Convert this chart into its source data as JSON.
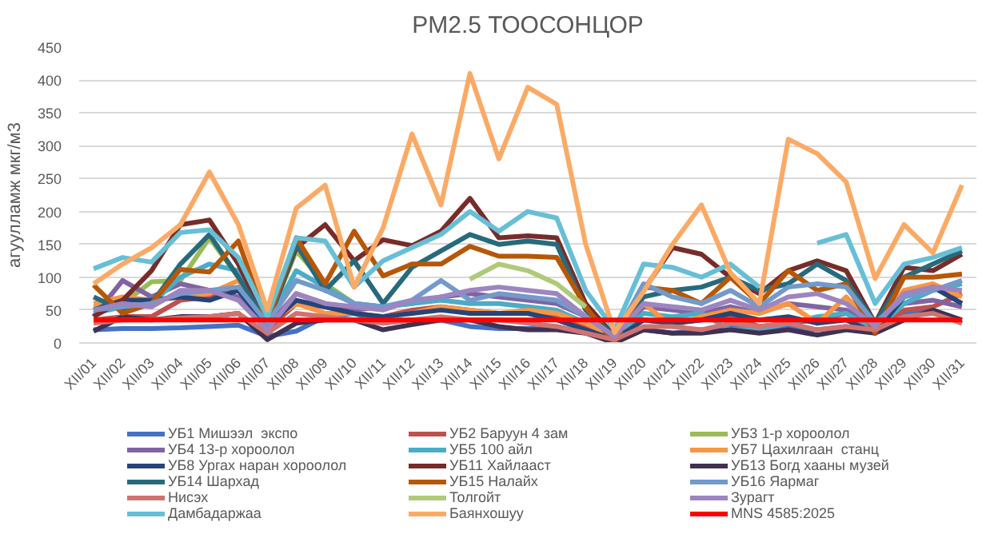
{
  "chart_data": {
    "type": "line",
    "title": "PM2.5 ТООСОНЦОР",
    "ylabel": "агуулламж мкг/м3",
    "categories": [
      "XII/01",
      "XII/02",
      "XII/03",
      "XII/04",
      "XII/05",
      "XII/06",
      "XII/07",
      "XII/08",
      "XII/09",
      "XII/10",
      "XII/11",
      "XII/12",
      "XII/13",
      "XII/14",
      "XII/15",
      "XII/16",
      "XII/17",
      "XII/18",
      "XII/19",
      "XII/20",
      "XII/21",
      "XII/22",
      "XII/23",
      "XII/24",
      "XII/25",
      "XII/26",
      "XII/27",
      "XII/28",
      "XII/29",
      "XII/30",
      "XII/31"
    ],
    "ylim": [
      0,
      450
    ],
    "yticks": [
      0,
      50,
      100,
      150,
      200,
      250,
      300,
      350,
      400,
      450
    ],
    "grid": "y",
    "legend": "bottom",
    "marker": "none",
    "line_style": "solid",
    "series": [
      {
        "name": "УБ1 Мишээл  экспо",
        "color": "#4472c4",
        "values": [
          20,
          22,
          22,
          23,
          25,
          27,
          10,
          18,
          40,
          45,
          30,
          35,
          35,
          25,
          22,
          22,
          25,
          15,
          5,
          20,
          15,
          20,
          25,
          20,
          25,
          20,
          25,
          15,
          45,
          50,
          30
        ]
      },
      {
        "name": "УБ2 Баруун 4 зам",
        "color": "#c0504d",
        "values": [
          35,
          40,
          40,
          65,
          70,
          80,
          20,
          60,
          55,
          45,
          40,
          50,
          55,
          50,
          45,
          45,
          40,
          25,
          10,
          35,
          30,
          35,
          40,
          25,
          30,
          35,
          45,
          20,
          50,
          55,
          75
        ]
      },
      {
        "name": "УБ3 1-р хороолол",
        "color": "#9bbb59",
        "values": [
          55,
          60,
          93,
          95,
          160,
          100,
          30,
          140,
          90,
          60,
          55,
          null,
          null,
          null,
          null,
          null,
          null,
          null,
          null,
          null,
          55,
          50,
          50,
          null,
          null,
          null,
          null,
          null,
          null,
          null,
          null
        ]
      },
      {
        "name": "УБ4 13-р хороолол",
        "color": "#8064a2",
        "values": [
          40,
          95,
          70,
          90,
          80,
          70,
          25,
          75,
          60,
          50,
          55,
          60,
          70,
          75,
          70,
          65,
          60,
          40,
          10,
          55,
          50,
          45,
          55,
          45,
          60,
          55,
          50,
          25,
          60,
          65,
          55
        ]
      },
      {
        "name": "УБ5 100 айл",
        "color": "#4bacc6",
        "values": [
          45,
          55,
          60,
          100,
          120,
          110,
          30,
          110,
          85,
          60,
          55,
          60,
          65,
          60,
          60,
          55,
          50,
          30,
          10,
          45,
          40,
          45,
          20,
          20,
          30,
          40,
          45,
          20,
          60,
          80,
          90
        ]
      },
      {
        "name": "УБ7 Цахилгаан  станц",
        "color": "#f79646",
        "values": [
          60,
          70,
          65,
          70,
          75,
          95,
          30,
          60,
          45,
          45,
          40,
          45,
          55,
          50,
          45,
          50,
          45,
          30,
          10,
          60,
          25,
          40,
          50,
          45,
          60,
          30,
          70,
          25,
          80,
          90,
          70
        ]
      },
      {
        "name": "УБ8 Ургах наран хороолол",
        "color": "#264478",
        "values": [
          50,
          65,
          65,
          70,
          65,
          80,
          25,
          65,
          55,
          45,
          40,
          45,
          50,
          45,
          45,
          45,
          35,
          20,
          5,
          35,
          30,
          35,
          45,
          35,
          40,
          30,
          35,
          15,
          70,
          85,
          60
        ]
      },
      {
        "name": "УБ11 Хайлааст",
        "color": "#772c2a",
        "values": [
          40,
          65,
          110,
          180,
          187,
          120,
          30,
          145,
          180,
          125,
          157,
          148,
          170,
          220,
          160,
          163,
          160,
          60,
          10,
          80,
          145,
          135,
          100,
          75,
          110,
          125,
          110,
          30,
          115,
          110,
          135
        ]
      },
      {
        "name": "УБ13 Богд хааны музей",
        "color": "#3f3151",
        "values": [
          18,
          40,
          35,
          40,
          40,
          45,
          5,
          30,
          35,
          35,
          20,
          28,
          35,
          35,
          25,
          20,
          20,
          15,
          0,
          20,
          15,
          15,
          20,
          15,
          20,
          12,
          20,
          15,
          35,
          50,
          35
        ]
      },
      {
        "name": "УБ14 Шархад",
        "color": "#276a7c",
        "values": [
          70,
          50,
          60,
          120,
          165,
          100,
          30,
          150,
          80,
          125,
          60,
          115,
          140,
          165,
          150,
          155,
          150,
          50,
          10,
          70,
          80,
          85,
          100,
          80,
          90,
          120,
          95,
          30,
          100,
          120,
          140
        ]
      },
      {
        "name": "УБ15 Налайх",
        "color": "#b65708",
        "values": [
          88,
          45,
          60,
          112,
          108,
          155,
          30,
          160,
          90,
          170,
          102,
          120,
          120,
          147,
          132,
          132,
          130,
          55,
          0,
          85,
          80,
          60,
          100,
          60,
          110,
          80,
          90,
          15,
          100,
          100,
          105
        ]
      },
      {
        "name": "УБ16 Яармаг",
        "color": "#729aca",
        "values": [
          50,
          55,
          60,
          75,
          80,
          85,
          30,
          95,
          80,
          60,
          55,
          65,
          95,
          65,
          75,
          70,
          65,
          40,
          10,
          90,
          70,
          60,
          80,
          55,
          85,
          90,
          85,
          30,
          70,
          80,
          95
        ]
      },
      {
        "name": "Нисэх",
        "color": "#d07370",
        "values": [
          30,
          35,
          35,
          38,
          40,
          45,
          15,
          45,
          40,
          35,
          30,
          35,
          40,
          35,
          35,
          30,
          25,
          15,
          5,
          25,
          25,
          20,
          30,
          25,
          30,
          20,
          25,
          20,
          40,
          45,
          30
        ]
      },
      {
        "name": "Толгойт",
        "color": "#afca7a",
        "values": [
          null,
          null,
          null,
          null,
          null,
          null,
          null,
          null,
          null,
          null,
          null,
          null,
          null,
          97,
          120,
          110,
          90,
          55,
          null,
          null,
          null,
          null,
          null,
          null,
          null,
          null,
          null,
          null,
          null,
          null,
          null
        ]
      },
      {
        "name": "Зурагт",
        "color": "#9c85c0",
        "values": [
          50,
          60,
          55,
          80,
          80,
          65,
          20,
          75,
          60,
          55,
          50,
          65,
          70,
          80,
          85,
          80,
          75,
          40,
          10,
          60,
          55,
          50,
          65,
          50,
          70,
          75,
          60,
          25,
          75,
          85,
          80
        ]
      },
      {
        "name": "Дамбадаржаа",
        "color": "#67bfd6",
        "values": [
          113,
          130,
          123,
          168,
          172,
          130,
          40,
          160,
          155,
          85,
          125,
          145,
          165,
          200,
          170,
          200,
          190,
          80,
          20,
          120,
          115,
          100,
          120,
          85,
          null,
          152,
          165,
          60,
          120,
          130,
          145
        ]
      },
      {
        "name": "Баянхошуу",
        "color": "#fbaa66",
        "values": [
          90,
          120,
          145,
          180,
          260,
          180,
          50,
          205,
          240,
          85,
          175,
          318,
          210,
          410,
          280,
          389,
          363,
          150,
          16,
          78,
          150,
          210,
          107,
          60,
          310,
          288,
          245,
          98,
          180,
          137,
          240
        ]
      },
      {
        "name": "MNS 4585:2025",
        "color": "#ff0000",
        "values": [
          35,
          35,
          35,
          35,
          35,
          35,
          35,
          35,
          35,
          35,
          35,
          35,
          35,
          35,
          35,
          35,
          35,
          35,
          35,
          35,
          35,
          35,
          35,
          35,
          35,
          35,
          35,
          35,
          35,
          35,
          35
        ]
      }
    ]
  }
}
